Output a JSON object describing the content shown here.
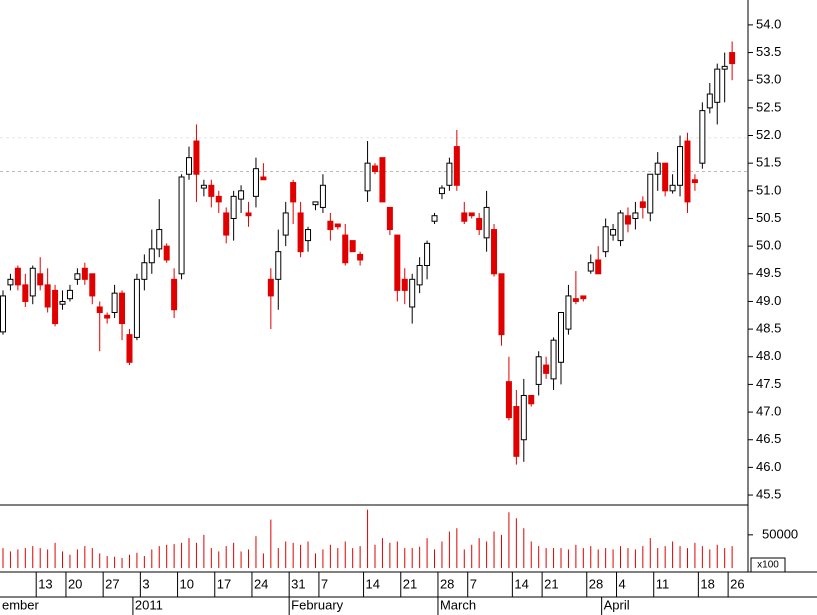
{
  "chart_data": {
    "type": "candlestick",
    "categories": [
      null,
      null,
      null,
      null,
      null,
      "13",
      null,
      null,
      null,
      "20",
      null,
      null,
      null,
      null,
      "27",
      null,
      null,
      null,
      null,
      "3",
      null,
      null,
      null,
      null,
      "10",
      null,
      null,
      null,
      null,
      "17",
      null,
      null,
      null,
      null,
      "24",
      null,
      null,
      null,
      null,
      "31",
      null,
      null,
      null,
      "7",
      null,
      null,
      null,
      null,
      null,
      "14",
      null,
      null,
      null,
      null,
      "21",
      null,
      null,
      null,
      null,
      "28",
      null,
      null,
      null,
      "7",
      null,
      null,
      null,
      null,
      null,
      "14",
      null,
      null,
      null,
      "21",
      null,
      null,
      null,
      null,
      null,
      "28",
      null,
      null,
      null,
      "4",
      null,
      null,
      null,
      null,
      "11",
      null,
      null,
      null,
      null,
      null,
      "18",
      null,
      null,
      null,
      "26"
    ],
    "months": [
      {
        "label": "ember",
        "index": 0
      },
      {
        "label": "2011",
        "index": 18
      },
      {
        "label": "February",
        "index": 39
      },
      {
        "label": "March",
        "index": 59
      },
      {
        "label": "April",
        "index": 81
      }
    ],
    "open": [
      48.45,
      49.3,
      49.6,
      49.3,
      49.1,
      49.5,
      49.3,
      49.2,
      48.95,
      49.05,
      49.4,
      49.6,
      49.5,
      48.9,
      48.75,
      48.8,
      49.15,
      48.4,
      48.35,
      49.4,
      49.7,
      49.95,
      50.0,
      49.4,
      49.5,
      51.3,
      51.9,
      51.05,
      51.1,
      50.9,
      50.6,
      50.5,
      50.85,
      50.6,
      50.9,
      51.25,
      49.4,
      49.4,
      50.2,
      51.15,
      50.6,
      50.1,
      50.75,
      50.7,
      50.45,
      50.4,
      50.2,
      50.1,
      49.85,
      51.0,
      51.45,
      51.6,
      50.7,
      50.2,
      49.4,
      48.9,
      49.3,
      49.65,
      50.45,
      50.95,
      51.1,
      51.8,
      50.6,
      50.6,
      50.5,
      50.15,
      50.3,
      49.5,
      47.55,
      47.1,
      46.5,
      47.3,
      47.5,
      47.85,
      47.6,
      47.9,
      48.5,
      49.05,
      49.1,
      49.55,
      49.75,
      49.9,
      50.2,
      50.1,
      50.55,
      50.5,
      50.8,
      50.6,
      51.3,
      51.5,
      51.0,
      51.1,
      51.9,
      51.2,
      51.5,
      52.5,
      52.6,
      53.2,
      53.5
    ],
    "high": [
      49.2,
      49.5,
      49.65,
      49.5,
      49.65,
      49.8,
      49.6,
      49.3,
      49.2,
      49.3,
      49.6,
      49.7,
      49.5,
      49.0,
      48.8,
      49.3,
      49.2,
      48.5,
      49.5,
      49.85,
      50.3,
      50.85,
      50.05,
      49.6,
      51.3,
      51.8,
      52.2,
      51.2,
      51.2,
      51.0,
      50.7,
      51.0,
      51.1,
      50.8,
      51.6,
      51.5,
      49.6,
      50.3,
      50.8,
      51.2,
      50.8,
      50.35,
      50.8,
      51.3,
      50.6,
      50.4,
      50.4,
      50.1,
      49.9,
      51.9,
      51.5,
      51.6,
      50.7,
      50.2,
      49.6,
      49.5,
      49.8,
      50.1,
      50.6,
      51.1,
      51.6,
      52.1,
      50.8,
      50.6,
      50.6,
      51.0,
      50.4,
      49.5,
      48.0,
      47.4,
      47.6,
      47.3,
      48.1,
      48.0,
      48.35,
      48.8,
      49.3,
      49.55,
      49.1,
      49.85,
      50.0,
      50.5,
      50.4,
      50.65,
      50.7,
      50.8,
      50.9,
      51.3,
      51.7,
      51.5,
      51.3,
      52.0,
      52.05,
      51.3,
      52.6,
      52.95,
      53.3,
      53.5,
      53.7
    ],
    "low": [
      48.4,
      49.2,
      49.2,
      48.9,
      48.95,
      49.2,
      48.8,
      48.55,
      48.85,
      49.0,
      49.3,
      49.3,
      48.95,
      48.1,
      48.6,
      48.7,
      48.3,
      47.85,
      48.3,
      49.2,
      49.5,
      49.8,
      49.7,
      48.7,
      49.4,
      51.2,
      50.8,
      50.9,
      50.7,
      50.6,
      50.05,
      50.1,
      50.6,
      50.35,
      50.7,
      51.2,
      48.5,
      48.85,
      50.0,
      50.4,
      49.8,
      49.9,
      50.65,
      50.6,
      50.1,
      50.3,
      49.65,
      49.9,
      49.65,
      50.8,
      51.3,
      50.8,
      50.2,
      49.0,
      48.95,
      48.6,
      49.15,
      49.4,
      50.4,
      50.85,
      51.0,
      51.0,
      50.4,
      50.5,
      50.2,
      49.9,
      49.45,
      48.2,
      46.85,
      46.05,
      46.1,
      47.1,
      47.3,
      47.6,
      47.4,
      47.5,
      48.4,
      48.95,
      49.0,
      49.5,
      49.5,
      49.8,
      50.1,
      50.0,
      50.25,
      50.3,
      50.5,
      50.45,
      51.0,
      50.9,
      50.95,
      50.9,
      50.6,
      51.0,
      51.4,
      52.4,
      52.2,
      52.6,
      53.0
    ],
    "close": [
      49.1,
      49.4,
      49.3,
      49.0,
      49.6,
      49.3,
      48.9,
      48.6,
      49.0,
      49.2,
      49.5,
      49.4,
      49.1,
      48.8,
      48.7,
      49.15,
      48.6,
      47.9,
      49.4,
      49.7,
      49.95,
      50.3,
      49.75,
      48.85,
      51.25,
      51.6,
      51.3,
      51.1,
      50.9,
      50.8,
      50.2,
      50.9,
      51.0,
      50.55,
      51.4,
      51.2,
      49.1,
      49.9,
      50.6,
      50.8,
      49.9,
      50.3,
      50.8,
      51.1,
      50.3,
      50.35,
      49.7,
      49.9,
      49.75,
      51.5,
      51.35,
      50.8,
      50.3,
      49.2,
      49.2,
      49.4,
      49.65,
      50.05,
      50.55,
      51.05,
      51.5,
      51.1,
      50.45,
      50.55,
      50.3,
      50.7,
      49.5,
      48.4,
      46.9,
      46.2,
      47.3,
      47.15,
      48.0,
      47.7,
      48.3,
      48.8,
      49.1,
      49.0,
      49.05,
      49.7,
      49.5,
      50.35,
      50.3,
      50.6,
      50.4,
      50.6,
      50.7,
      51.3,
      51.5,
      51.0,
      51.1,
      51.8,
      50.8,
      51.15,
      52.45,
      52.75,
      53.2,
      53.25,
      53.3
    ],
    "volume": [
      30000,
      25000,
      28000,
      30000,
      33000,
      30000,
      28000,
      38000,
      25000,
      20000,
      28000,
      33000,
      30000,
      22000,
      18000,
      17000,
      15000,
      20000,
      23000,
      18000,
      28000,
      33000,
      35000,
      36000,
      38000,
      45000,
      38000,
      50000,
      30000,
      25000,
      33000,
      38000,
      25000,
      28000,
      48000,
      22000,
      73000,
      30000,
      40000,
      38000,
      35000,
      40000,
      22000,
      28000,
      35000,
      30000,
      40000,
      30000,
      33000,
      88000,
      35000,
      45000,
      38000,
      40000,
      30000,
      30000,
      32000,
      45000,
      28000,
      40000,
      55000,
      60000,
      28000,
      35000,
      45000,
      40000,
      55000,
      50000,
      84000,
      75000,
      60000,
      40000,
      33000,
      30000,
      30000,
      30000,
      28000,
      35000,
      30000,
      33000,
      28000,
      30000,
      28000,
      33000,
      30000,
      28000,
      33000,
      45000,
      30000,
      33000,
      40000,
      33000,
      30000,
      38000,
      33000,
      28000,
      35000,
      30000,
      33000
    ],
    "up_color": "#ffffff",
    "down_color": "#e00000",
    "volume_color": "#e00000",
    "ylim": [
      45.32,
      54.45
    ],
    "yticks": [
      45.5,
      46,
      46.5,
      47,
      47.5,
      48,
      48.5,
      49,
      49.5,
      50,
      50.5,
      51,
      51.5,
      52,
      52.5,
      53,
      53.5,
      54
    ],
    "ytick_labels": [
      "45.5",
      "46.0",
      "46.5",
      "47.0",
      "47.5",
      "48.0",
      "48.5",
      "49.0",
      "49.5",
      "50.0",
      "50.5",
      "51.0",
      "51.5",
      "52.0",
      "52.5",
      "53.0",
      "53.5",
      "54.0"
    ],
    "reference_lines": [
      51.35,
      51.96
    ],
    "volume_ylim": [
      0,
      95000
    ],
    "volume_yticks": [
      50000
    ],
    "volume_unit": "x100"
  }
}
